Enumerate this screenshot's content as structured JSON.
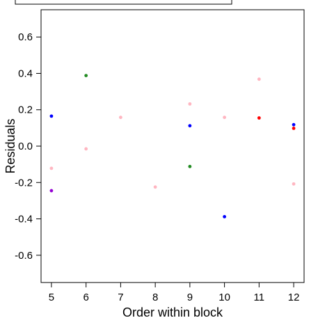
{
  "chart_data": {
    "type": "scatter",
    "title": "",
    "xlabel": "Order within block",
    "ylabel": "Residuals",
    "xlim": [
      4.7,
      12.3
    ],
    "ylim": [
      -0.75,
      0.75
    ],
    "x_ticks": [
      5,
      6,
      7,
      8,
      9,
      10,
      11,
      12
    ],
    "y_ticks": [
      -0.6,
      -0.4,
      -0.2,
      0.0,
      0.2,
      0.4,
      0.6
    ],
    "y_tick_labels": [
      "-0.6",
      "-0.4",
      "-0.2",
      "0.0",
      "0.2",
      "0.4",
      "0.6"
    ],
    "grid": false,
    "legend": "box at top, contents cropped",
    "points": [
      {
        "x": 5,
        "y": 0.165,
        "color": "#0000ff"
      },
      {
        "x": 5,
        "y": -0.122,
        "color": "#ffb6c1"
      },
      {
        "x": 5,
        "y": -0.245,
        "color": "#9400d3"
      },
      {
        "x": 6,
        "y": 0.388,
        "color": "#228b22"
      },
      {
        "x": 6,
        "y": -0.015,
        "color": "#ffb6c1"
      },
      {
        "x": 7,
        "y": 0.158,
        "color": "#ffb6c1"
      },
      {
        "x": 8,
        "y": -0.225,
        "color": "#ffb6c1"
      },
      {
        "x": 9,
        "y": 0.232,
        "color": "#ffb6c1"
      },
      {
        "x": 9,
        "y": 0.112,
        "color": "#0000ff"
      },
      {
        "x": 9,
        "y": -0.112,
        "color": "#228b22"
      },
      {
        "x": 10,
        "y": 0.158,
        "color": "#ffb6c1"
      },
      {
        "x": 10,
        "y": -0.388,
        "color": "#0000ff"
      },
      {
        "x": 11,
        "y": 0.368,
        "color": "#ffb6c1"
      },
      {
        "x": 11,
        "y": 0.155,
        "color": "#ff0000"
      },
      {
        "x": 12,
        "y": 0.118,
        "color": "#0000ff"
      },
      {
        "x": 12,
        "y": 0.098,
        "color": "#ff0000"
      },
      {
        "x": 12,
        "y": -0.208,
        "color": "#ffb6c1"
      }
    ]
  }
}
